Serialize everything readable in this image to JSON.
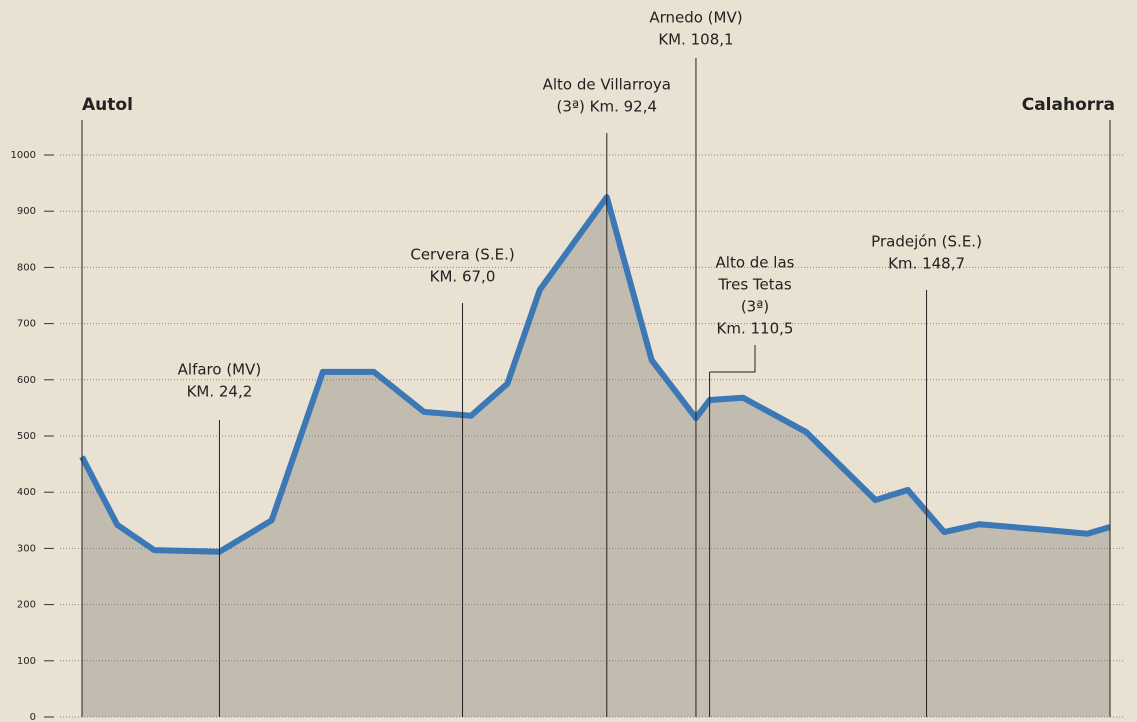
{
  "chart_data": {
    "type": "line",
    "x": [
      0,
      6.2,
      12.7,
      24.2,
      33.4,
      42.4,
      51.4,
      60.2,
      68.5,
      74.9,
      80.6,
      92.4,
      100.3,
      108.1,
      110.5,
      116.4,
      127.5,
      139.7,
      145.4,
      151.8,
      158,
      169.7,
      177,
      181
    ],
    "series": [
      {
        "color": "#3b78b5",
        "values": [
          463,
          342,
          297,
          294,
          350,
          614,
          614,
          543,
          536,
          593,
          760,
          925,
          635,
          532,
          564,
          568,
          507,
          386,
          404,
          329,
          343,
          333,
          326,
          338
        ]
      }
    ],
    "xlim": [
      0,
      181
    ],
    "ylim": [
      0,
      1000
    ],
    "yticks": [
      0,
      100,
      200,
      300,
      400,
      500,
      600,
      700,
      800,
      900,
      1000
    ],
    "grid": true,
    "annotations": [
      {
        "km": 0,
        "lines": [
          "Autol"
        ]
      },
      {
        "km": 24.2,
        "lines": [
          "Alfaro (MV)",
          "KM. 24,2"
        ]
      },
      {
        "km": 67.0,
        "lines": [
          "Cervera (S.E.)",
          "KM. 67,0"
        ]
      },
      {
        "km": 92.4,
        "lines": [
          "Alto de  Villarroya",
          "(3ª) Km. 92,4"
        ]
      },
      {
        "km": 108.1,
        "lines": [
          "Arnedo (MV)",
          "KM. 108,1"
        ]
      },
      {
        "km": 110.5,
        "lines": [
          "Alto de las",
          "Tres Tetas",
          "(3ª)",
          "Km. 110,5"
        ]
      },
      {
        "km": 148.7,
        "lines": [
          "Pradejón (S.E.)",
          "Km. 148,7"
        ]
      },
      {
        "km": 181,
        "lines": [
          "Calahorra"
        ]
      }
    ]
  }
}
